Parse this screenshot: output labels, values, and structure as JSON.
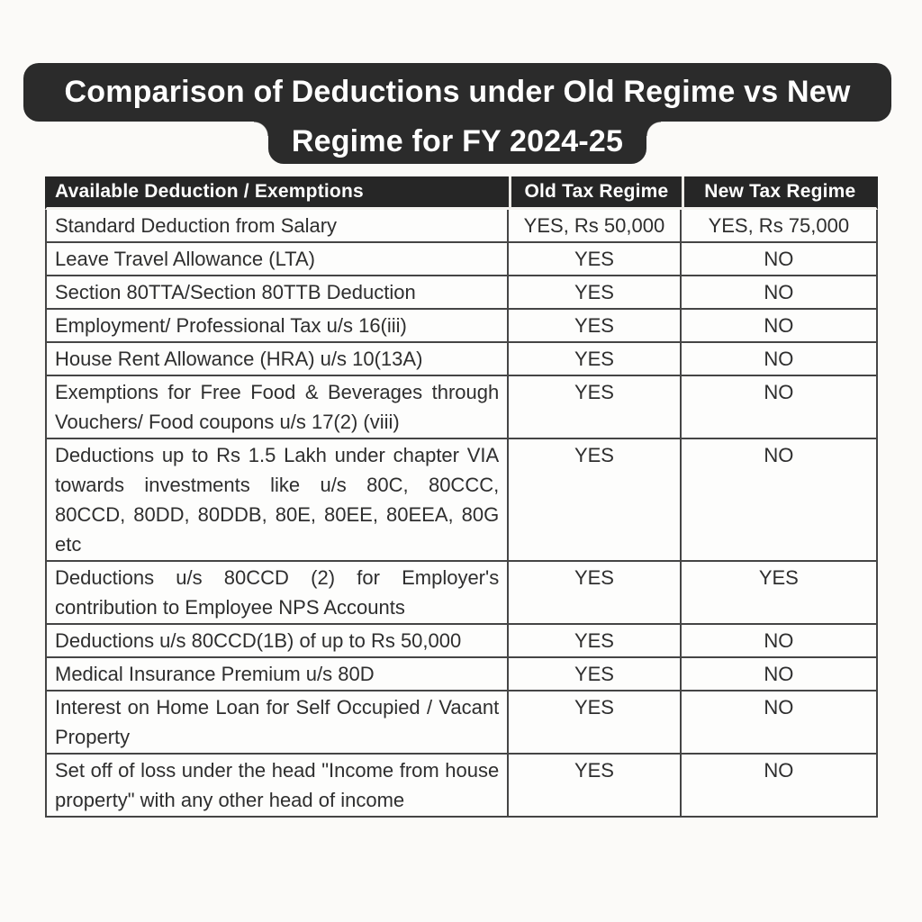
{
  "title": {
    "line1": "Comparison of Deductions under Old Regime vs New",
    "line2": "Regime for FY 2024-25"
  },
  "table": {
    "headers": [
      "Available Deduction / Exemptions",
      "Old Tax Regime",
      "New Tax Regime"
    ],
    "rows": [
      {
        "deduction": "Standard Deduction from Salary",
        "old": "YES, Rs 50,000",
        "new": "YES, Rs 75,000"
      },
      {
        "deduction": "Leave Travel Allowance (LTA)",
        "old": "YES",
        "new": "NO"
      },
      {
        "deduction": "Section 80TTA/Section 80TTB Deduction",
        "old": "YES",
        "new": "NO"
      },
      {
        "deduction": "Employment/ Professional Tax u/s 16(iii)",
        "old": "YES",
        "new": "NO"
      },
      {
        "deduction": "House Rent Allowance (HRA) u/s 10(13A)",
        "old": "YES",
        "new": "NO"
      },
      {
        "deduction": "Exemptions for Free Food & Beverages through Vouchers/ Food coupons u/s 17(2) (viii)",
        "old": "YES",
        "new": "NO"
      },
      {
        "deduction": "Deductions up to Rs 1.5 Lakh under chapter VIA towards investments like u/s 80C, 80CCC, 80CCD, 80DD, 80DDB, 80E, 80EE, 80EEA, 80G etc",
        "old": "YES",
        "new": "NO"
      },
      {
        "deduction": "Deductions u/s 80CCD (2) for Employer's contribution to Employee NPS Accounts",
        "old": "YES",
        "new": "YES"
      },
      {
        "deduction": "Deductions u/s 80CCD(1B) of up to Rs 50,000",
        "old": "YES",
        "new": "NO"
      },
      {
        "deduction": "Medical Insurance Premium u/s 80D",
        "old": "YES",
        "new": "NO"
      },
      {
        "deduction": "Interest on Home Loan for Self Occupied / Vacant Property",
        "old": "YES",
        "new": "NO"
      },
      {
        "deduction": "Set off of loss under the head \"Income from house property\" with any other head of income",
        "old": "YES",
        "new": "NO"
      }
    ]
  },
  "colors": {
    "banner_bg": "#2b2b2b",
    "header_bg": "#262626",
    "header_text": "#ffffff",
    "body_text": "#2e2e2e",
    "border": "#454545",
    "page_bg": "#fbfaf8",
    "cell_bg": "#fdfdfc"
  }
}
